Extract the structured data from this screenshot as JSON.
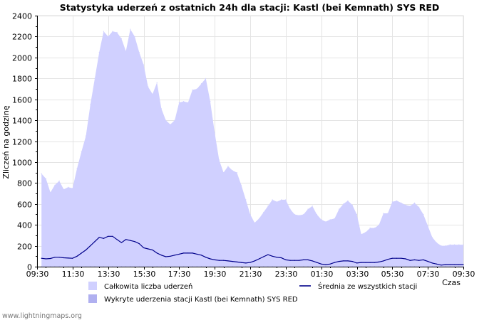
{
  "chart_data": {
    "type": "area",
    "title": "Statystyka uderzeń z ostatnich 24h dla stacji: Kastl (bei Kemnath) SYS RED",
    "xlabel": "Czas",
    "ylabel": "Zliczeń na godzinę",
    "ylim": [
      0,
      2400
    ],
    "yticks": [
      0,
      200,
      400,
      600,
      800,
      1000,
      1200,
      1400,
      1600,
      1800,
      2000,
      2200,
      2400
    ],
    "xtick_labels": [
      "09:30",
      "11:30",
      "13:30",
      "15:30",
      "17:30",
      "19:30",
      "21:30",
      "23:30",
      "01:30",
      "03:30",
      "05:30",
      "07:30",
      "09:30"
    ],
    "x_hours_range": [
      0,
      24
    ],
    "grid": true,
    "series": [
      {
        "name": "Całkowita liczba uderzeń",
        "kind": "area",
        "color": "#d0d0ff",
        "x": [
          0.25,
          0.5,
          0.75,
          1.0,
          1.25,
          1.5,
          1.75,
          2.0,
          2.25,
          2.5,
          2.75,
          3.0,
          3.25,
          3.5,
          3.75,
          4.0,
          4.25,
          4.5,
          4.75,
          5.0,
          5.25,
          5.5,
          5.75,
          6.0,
          6.25,
          6.5,
          6.75,
          7.0,
          7.25,
          7.5,
          7.75,
          8.0,
          8.25,
          8.5,
          8.75,
          9.0,
          9.25,
          9.5,
          9.75,
          10.0,
          10.25,
          10.5,
          10.75,
          11.0,
          11.25,
          11.5,
          11.75,
          12.0,
          12.25,
          12.5,
          12.75,
          13.0,
          13.25,
          13.5,
          13.75,
          14.0,
          14.25,
          14.5,
          14.75,
          15.0,
          15.25,
          15.5,
          15.75,
          16.0,
          16.25,
          16.5,
          16.75,
          17.0,
          17.25,
          17.5,
          17.75,
          18.0,
          18.25,
          18.5,
          18.75,
          19.0,
          19.25,
          19.5,
          19.75,
          20.0,
          20.25,
          20.5,
          20.75,
          21.0,
          21.25,
          21.5,
          21.75,
          22.0,
          22.25,
          22.5,
          22.75,
          23.0,
          23.25,
          23.5,
          23.75,
          24.0
        ],
        "values": [
          890,
          840,
          710,
          780,
          820,
          740,
          760,
          750,
          940,
          1100,
          1250,
          1550,
          1800,
          2050,
          2250,
          2200,
          2250,
          2240,
          2180,
          2060,
          2270,
          2200,
          2050,
          1930,
          1720,
          1650,
          1760,
          1510,
          1400,
          1360,
          1400,
          1570,
          1580,
          1570,
          1690,
          1700,
          1750,
          1800,
          1580,
          1280,
          1020,
          900,
          960,
          920,
          900,
          780,
          640,
          500,
          420,
          460,
          520,
          580,
          640,
          620,
          640,
          640,
          550,
          500,
          490,
          500,
          550,
          580,
          500,
          450,
          430,
          450,
          460,
          550,
          600,
          630,
          590,
          500,
          310,
          330,
          370,
          370,
          400,
          510,
          510,
          620,
          630,
          610,
          590,
          580,
          610,
          570,
          500,
          390,
          280,
          230,
          200,
          200,
          210,
          210,
          210,
          210
        ]
      },
      {
        "name": "Wykryte uderzenia stacji Kastl (bei Kemnath) SYS RED",
        "kind": "area",
        "color": "#b0b0f0",
        "x": [
          0.25,
          0.5,
          0.75,
          1.0,
          1.25,
          1.5,
          1.75,
          2.0,
          2.25,
          2.5,
          2.75,
          3.0,
          3.25,
          3.5,
          3.75,
          4.0,
          4.25,
          4.5,
          4.75,
          5.0,
          5.25,
          5.5,
          5.75,
          6.0,
          6.25,
          6.5,
          6.75,
          7.0,
          7.25,
          7.5,
          7.75,
          8.0,
          8.25,
          8.5,
          8.75,
          9.0,
          9.25,
          9.5,
          9.75,
          10.0,
          10.25,
          10.5,
          10.75,
          11.0,
          11.25,
          11.5,
          11.75,
          12.0,
          12.25,
          12.5,
          12.75,
          13.0,
          13.25,
          13.5,
          13.75,
          14.0,
          14.25,
          14.5,
          14.75,
          15.0,
          15.25,
          15.5,
          15.75,
          16.0,
          16.25,
          16.5,
          16.75,
          17.0,
          17.25,
          17.5,
          17.75,
          18.0,
          18.25,
          18.5,
          18.75,
          19.0,
          19.25,
          19.5,
          19.75,
          20.0,
          20.25,
          20.5,
          20.75,
          21.0,
          21.25,
          21.5,
          21.75,
          22.0,
          22.25,
          22.5,
          22.75,
          23.0,
          23.25,
          23.5,
          23.75,
          24.0
        ],
        "values": [
          0,
          0,
          0,
          0,
          0,
          0,
          0,
          0,
          0,
          0,
          0,
          0,
          0,
          0,
          0,
          0,
          0,
          0,
          0,
          0,
          0,
          0,
          0,
          0,
          0,
          0,
          0,
          0,
          0,
          0,
          0,
          0,
          0,
          0,
          0,
          0,
          0,
          0,
          0,
          0,
          0,
          0,
          0,
          0,
          0,
          0,
          0,
          0,
          0,
          0,
          0,
          0,
          0,
          0,
          0,
          0,
          0,
          0,
          0,
          0,
          0,
          0,
          0,
          0,
          0,
          0,
          0,
          0,
          0,
          0,
          0,
          0,
          0,
          0,
          0,
          0,
          0,
          0,
          0,
          0,
          0,
          0,
          0,
          0,
          0,
          0,
          0,
          0,
          0,
          0,
          0,
          0,
          0,
          0,
          0,
          0
        ]
      },
      {
        "name": "Średnia ze wszystkich stacji",
        "kind": "line",
        "color": "#00008b",
        "x": [
          0.25,
          0.5,
          0.75,
          1.0,
          1.25,
          1.5,
          1.75,
          2.0,
          2.25,
          2.5,
          2.75,
          3.0,
          3.25,
          3.5,
          3.75,
          4.0,
          4.25,
          4.5,
          4.75,
          5.0,
          5.25,
          5.5,
          5.75,
          6.0,
          6.25,
          6.5,
          6.75,
          7.0,
          7.25,
          7.5,
          7.75,
          8.0,
          8.25,
          8.5,
          8.75,
          9.0,
          9.25,
          9.5,
          9.75,
          10.0,
          10.25,
          10.5,
          10.75,
          11.0,
          11.25,
          11.5,
          11.75,
          12.0,
          12.25,
          12.5,
          12.75,
          13.0,
          13.25,
          13.5,
          13.75,
          14.0,
          14.25,
          14.5,
          14.75,
          15.0,
          15.25,
          15.5,
          15.75,
          16.0,
          16.25,
          16.5,
          16.75,
          17.0,
          17.25,
          17.5,
          17.75,
          18.0,
          18.25,
          18.5,
          18.75,
          19.0,
          19.25,
          19.5,
          19.75,
          20.0,
          20.25,
          20.5,
          20.75,
          21.0,
          21.25,
          21.5,
          21.75,
          22.0,
          22.25,
          22.5,
          22.75,
          23.0,
          23.25,
          23.5,
          23.75,
          24.0
        ],
        "values": [
          80,
          75,
          78,
          90,
          90,
          85,
          82,
          80,
          100,
          130,
          160,
          200,
          240,
          280,
          270,
          290,
          290,
          260,
          230,
          260,
          250,
          240,
          220,
          180,
          170,
          160,
          130,
          110,
          95,
          100,
          110,
          120,
          130,
          130,
          130,
          120,
          110,
          90,
          75,
          65,
          60,
          60,
          55,
          50,
          45,
          40,
          35,
          40,
          55,
          75,
          95,
          115,
          100,
          90,
          85,
          65,
          60,
          60,
          60,
          65,
          65,
          55,
          40,
          25,
          20,
          25,
          40,
          50,
          55,
          55,
          50,
          35,
          40,
          40,
          40,
          40,
          45,
          55,
          70,
          80,
          80,
          80,
          75,
          60,
          65,
          60,
          65,
          50,
          35,
          25,
          15,
          20,
          20,
          20,
          20,
          20
        ]
      }
    ],
    "legend": [
      {
        "label": "Całkowita liczba uderzeń",
        "swatch": "box",
        "color": "#d0d0ff"
      },
      {
        "label": "Wykryte uderzenia stacji Kastl (bei Kemnath) SYS RED",
        "swatch": "box",
        "color": "#b0b0f0"
      },
      {
        "label": "Średnia ze wszystkich stacji",
        "swatch": "line",
        "color": "#00008b"
      }
    ],
    "legend_placement": "bottom"
  },
  "footer": {
    "credit": "www.lightningmaps.org"
  }
}
